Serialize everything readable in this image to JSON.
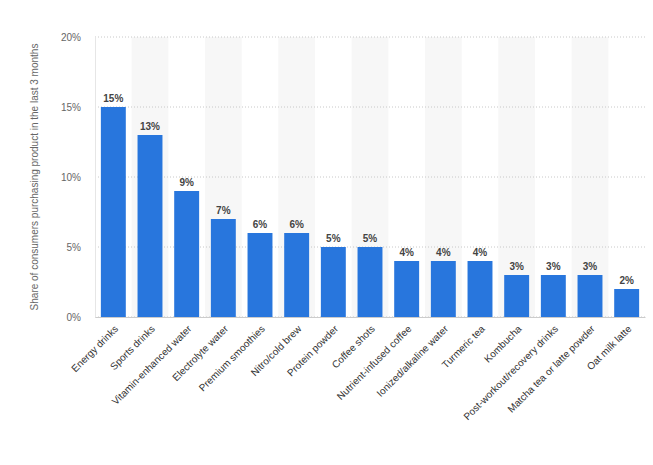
{
  "chart_data": {
    "type": "bar",
    "ylabel": "Share of consumers purchasing product in the last 3 months",
    "categories": [
      "Energy drinks",
      "Sports drinks",
      "Vitamin-enhanced water",
      "Electrolyte water",
      "Premium smoothies",
      "Nitro/cold brew",
      "Protein powder",
      "Coffee shots",
      "Nutrient-infused coffee",
      "Ionized/alkaline water",
      "Turmeric tea",
      "Kombucha",
      "Post-workout/recovery drinks",
      "Matcha tea or latte powder",
      "Oat milk latte"
    ],
    "values": [
      15,
      13,
      9,
      7,
      6,
      6,
      5,
      5,
      4,
      4,
      4,
      3,
      3,
      3,
      2
    ],
    "value_labels": [
      "15%",
      "13%",
      "9%",
      "7%",
      "6%",
      "6%",
      "5%",
      "5%",
      "4%",
      "4%",
      "4%",
      "3%",
      "3%",
      "3%",
      "2%"
    ],
    "color": "#2876dd",
    "ylim": [
      0,
      20
    ],
    "yticks": [
      {
        "value": 0,
        "label": "0%"
      },
      {
        "value": 5,
        "label": "5%"
      },
      {
        "value": 10,
        "label": "10%"
      },
      {
        "value": 15,
        "label": "15%"
      },
      {
        "value": 20,
        "label": "20%"
      }
    ],
    "grid": true,
    "data_labels": true
  }
}
